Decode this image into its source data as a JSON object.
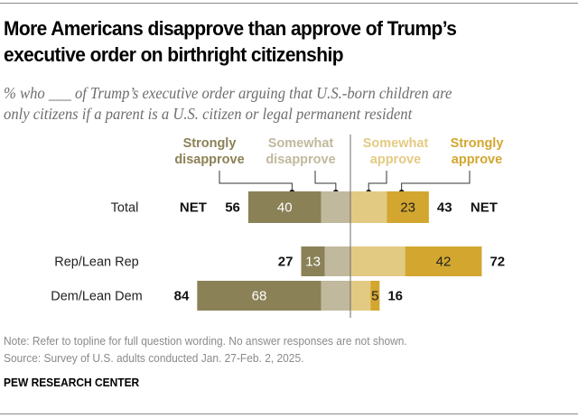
{
  "header": {
    "title": "More Americans disapprove than approve of Trump’s executive order on birthright citizenship",
    "title_lines": [
      "More Americans disapprove than approve of Trump’s",
      "executive order on birthright citizenship"
    ],
    "subtitle_lines": [
      "% who ___ of Trump’s executive order arguing that U.S.-born children are",
      "only citizens if a parent is a U.S. citizen or legal permanent resident"
    ]
  },
  "footer": {
    "note": "Note: Refer to topline for full question wording. No answer responses are not shown.",
    "source": "Source: Survey of U.S. adults conducted Jan. 27-Feb. 2, 2025.",
    "brand": "PEW RESEARCH CENTER"
  },
  "chart_data": {
    "type": "bar",
    "orientation": "horizontal-diverging",
    "title": "More Americans disapprove than approve of Trump’s executive order on birthright citizenship",
    "subtitle": "% who ___ of Trump’s executive order arguing that U.S.-born children are only citizens if a parent is a U.S. citizen or legal permanent resident",
    "categories": [
      "Total",
      "Rep/Lean Rep",
      "Dem/Lean Dem"
    ],
    "series": [
      {
        "name": "Strongly disapprove",
        "side": "left",
        "color": "#8b8157",
        "label_color": "#ffffff",
        "show_labels": true,
        "values": [
          40,
          13,
          68
        ]
      },
      {
        "name": "Somewhat disapprove",
        "side": "left",
        "color": "#c1b99d",
        "show_labels": false,
        "values": [
          16,
          14,
          16
        ]
      },
      {
        "name": "Somewhat approve",
        "side": "right",
        "color": "#e3ca82",
        "show_labels": false,
        "values": [
          20,
          30,
          11
        ]
      },
      {
        "name": "Strongly approve",
        "side": "right",
        "color": "#d2a62f",
        "label_color": "#222222",
        "show_labels": true,
        "values": [
          23,
          42,
          5
        ]
      }
    ],
    "net_disapprove": [
      56,
      27,
      84
    ],
    "net_approve": [
      43,
      72,
      16
    ],
    "net_label": "NET",
    "legend": [
      {
        "line1": "Strongly",
        "line2": "disapprove",
        "color": "#8b8157"
      },
      {
        "line1": "Somewhat",
        "line2": "disapprove",
        "color": "#c1b99d"
      },
      {
        "line1": "Somewhat",
        "line2": "approve",
        "color": "#e3ca82"
      },
      {
        "line1": "Strongly",
        "line2": "approve",
        "color": "#d2a62f"
      }
    ],
    "legend_placement": "top",
    "xlabel": "",
    "ylabel": "",
    "grid": false
  }
}
